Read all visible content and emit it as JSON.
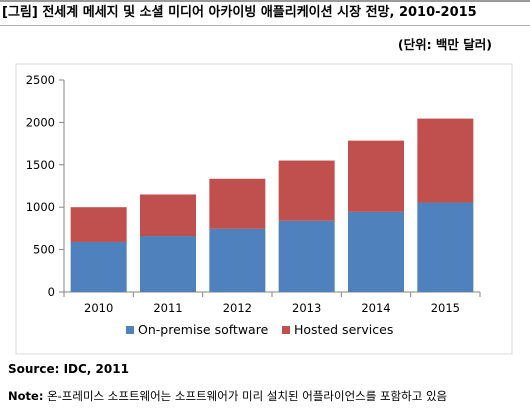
{
  "header": {
    "title": "[그림] 전세계 메세지 및 소셜 미디어 아카이빙 애플리케이션 시장 전망, 2010-2015",
    "unit": "(단위: 백만 달러)"
  },
  "chart_data": {
    "type": "bar",
    "stacked": true,
    "categories": [
      "2010",
      "2011",
      "2012",
      "2013",
      "2014",
      "2015"
    ],
    "series": [
      {
        "name": "On-premise software",
        "color": "#4F81BD",
        "values": [
          590,
          660,
          745,
          840,
          945,
          1055
        ]
      },
      {
        "name": "Hosted services",
        "color": "#C0504D",
        "values": [
          410,
          490,
          590,
          710,
          840,
          990
        ]
      }
    ],
    "yticks": [
      "0",
      "500",
      "1000",
      "1500",
      "2000",
      "2500"
    ],
    "ylim": [
      0,
      2500
    ],
    "grid": false,
    "legend": "bottom"
  },
  "footer": {
    "source": "Source: IDC, 2011",
    "note_label": "Note:",
    "note_text": " 온-프레미스 소프트웨어는 소프트웨어가 미리 설치된 어플라이언스를 포함하고 있음"
  }
}
